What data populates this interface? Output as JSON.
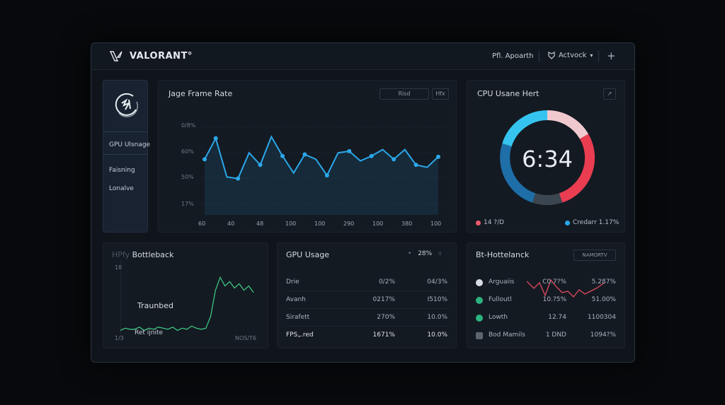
{
  "header": {
    "brand": "VALORANT°",
    "user": "Pfl. Apoarth",
    "account": "Actvock",
    "add_symbol": "+"
  },
  "sidebar": {
    "items": [
      {
        "label": "GPU Ulsnage"
      },
      {
        "label": "Faisning"
      },
      {
        "label": "Lonalve"
      }
    ]
  },
  "frame_rate": {
    "title": "Jage Frame Rate",
    "btn1": "Rlsd",
    "btn2": "Hfx",
    "accent": "#2aa8ea",
    "chart_data": {
      "type": "line",
      "y_tick_labels": [
        "0/8%",
        "60%",
        "50%",
        "17%"
      ],
      "x_tick_labels": [
        "60",
        "40",
        "48",
        "100",
        "100",
        "290",
        "100",
        "380",
        "100"
      ],
      "values": [
        62,
        88,
        40,
        38,
        70,
        55,
        90,
        66,
        45,
        68,
        62,
        42,
        70,
        72,
        60,
        66,
        74,
        62,
        74,
        55,
        52,
        65
      ]
    }
  },
  "cpu": {
    "title": "CPU Usane Hert",
    "time": "6:34",
    "legend_left": "14 ?/D",
    "legend_right": "Credarr 1.17%",
    "legend_left_color": "#ef5b6b",
    "legend_right_color": "#2aa8ea"
  },
  "bottleneck_left": {
    "title_prefix": "HPfy",
    "title": "Bottleback",
    "label_main": "Traunbed",
    "label_sub": "Ret ijnite",
    "y_label": "18",
    "y_bottom": "1/3",
    "x_right": "NOS/T6",
    "accent": "#3fd08a",
    "chart_data": {
      "type": "line",
      "values": [
        3,
        5,
        4,
        4,
        6,
        3,
        5,
        4,
        6,
        5,
        4,
        6,
        3,
        5,
        4,
        7,
        5,
        4,
        5,
        16,
        40,
        52,
        44,
        48,
        42,
        46,
        40,
        44,
        38
      ]
    }
  },
  "gpu_usage": {
    "title": "GPU Usage",
    "summary": "28%",
    "rows": [
      {
        "label": "Drie",
        "a": "0/2%",
        "b": "04/3%"
      },
      {
        "label": "Avanh",
        "a": "0217%",
        "b": "I510%"
      },
      {
        "label": "Sirafett",
        "a": "270%",
        "b": "10.0%"
      },
      {
        "label": "FPS„.red",
        "a": "1671%",
        "b": "10.0%"
      }
    ]
  },
  "bottleneck_right": {
    "title": "Bt-Hottelanck",
    "btn": "NAMORTV",
    "rows": [
      {
        "label": "Arguaiis",
        "a": "C0.7?%",
        "b": "5.287%",
        "icon": "bolt-icon",
        "color": "#d8dde3"
      },
      {
        "label": "Fulloutl",
        "a": "10.?5%",
        "b": "51.00%",
        "icon": "dot-icon",
        "color": "#2db37f"
      },
      {
        "label": "Lowth",
        "a": "12.74",
        "b": "1100304",
        "icon": "dot-icon",
        "color": "#2db37f"
      },
      {
        "label": "Bod Mamils",
        "a": "1 DND",
        "b": "1094?%",
        "icon": "grid-icon",
        "color": "#5c6671"
      }
    ],
    "spark_color": "#e04a5e"
  }
}
